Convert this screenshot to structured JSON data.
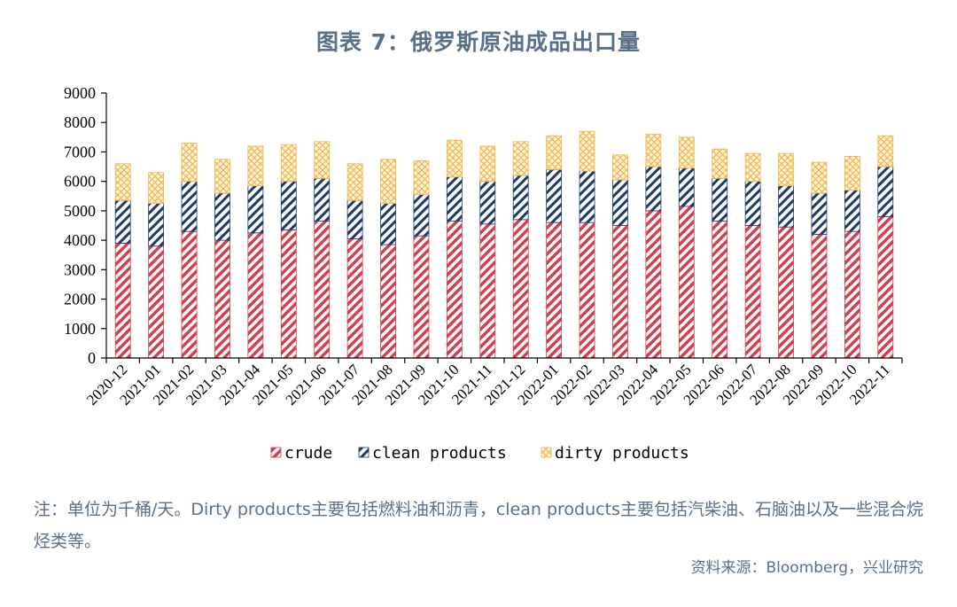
{
  "title": "图表 7：俄罗斯原油成品出口量",
  "note": "注：单位为千桶/天。Dirty products主要包括燃料油和沥青，clean products主要包括汽柴油、石脑油以及一些混合烷烃类等。",
  "source": "资料来源：Bloomberg，兴业研究",
  "colors": {
    "crude": "#d2404f",
    "clean": "#1e3a6b",
    "dirty": "#f2b64a"
  },
  "chart_data": {
    "type": "bar",
    "stacked": true,
    "title": "图表 7：俄罗斯原油成品出口量",
    "xlabel": "",
    "ylabel": "",
    "ylim": [
      0,
      9000
    ],
    "yticks": [
      0,
      1000,
      2000,
      3000,
      4000,
      5000,
      6000,
      7000,
      8000,
      9000
    ],
    "legend_position": "bottom",
    "categories": [
      "2020-12",
      "2021-01",
      "2021-02",
      "2021-03",
      "2021-04",
      "2021-05",
      "2021-06",
      "2021-07",
      "2021-08",
      "2021-09",
      "2021-10",
      "2021-11",
      "2021-12",
      "2022-01",
      "2022-02",
      "2022-03",
      "2022-04",
      "2022-05",
      "2022-06",
      "2022-07",
      "2022-08",
      "2022-09",
      "2022-10",
      "2022-11"
    ],
    "series": [
      {
        "name": "crude",
        "values": [
          3900,
          3800,
          4300,
          4000,
          4250,
          4350,
          4650,
          4050,
          3850,
          4150,
          4650,
          4550,
          4700,
          4600,
          4600,
          4500,
          5000,
          5150,
          4650,
          4500,
          4450,
          4200,
          4300,
          4800
        ]
      },
      {
        "name": "clean products",
        "values": [
          1450,
          1450,
          1700,
          1600,
          1600,
          1650,
          1450,
          1300,
          1400,
          1400,
          1500,
          1450,
          1500,
          1800,
          1750,
          1550,
          1500,
          1300,
          1450,
          1500,
          1400,
          1400,
          1400,
          1700
        ]
      },
      {
        "name": "dirty products",
        "values": [
          1250,
          1050,
          1300,
          1150,
          1350,
          1250,
          1250,
          1250,
          1500,
          1150,
          1250,
          1200,
          1150,
          1150,
          1350,
          850,
          1100,
          1050,
          1000,
          950,
          1100,
          1050,
          1150,
          1050
        ]
      }
    ]
  }
}
